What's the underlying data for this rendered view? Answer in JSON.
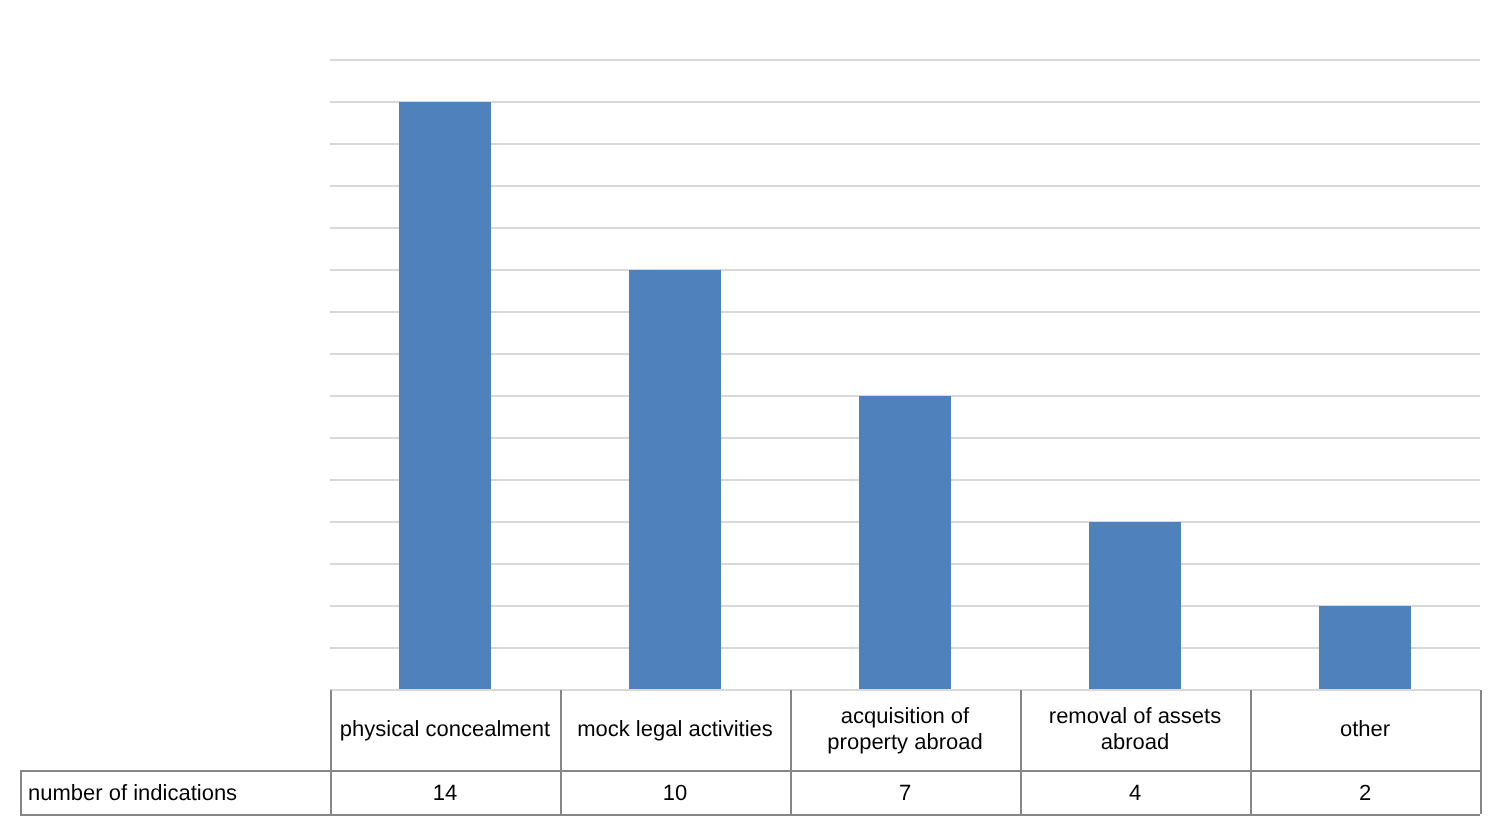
{
  "chart_data": {
    "type": "bar",
    "categories": [
      "physical concealment",
      "mock legal activities",
      "acquisition of property abroad",
      "removal of assets abroad",
      "other"
    ],
    "series": [
      {
        "name": "number of indications",
        "color": "#4f81bd",
        "values": [
          14,
          10,
          7,
          4,
          2
        ]
      }
    ],
    "ylim": [
      0,
      15
    ],
    "yticks": [
      {
        "value": 0,
        "label": null
      },
      {
        "value": 1,
        "label": null
      },
      {
        "value": 2,
        "label": null
      },
      {
        "value": 3,
        "label": null
      },
      {
        "value": 4,
        "label": null
      },
      {
        "value": 5,
        "label": null
      },
      {
        "value": 6,
        "label": null
      },
      {
        "value": 7,
        "label": null
      },
      {
        "value": 8,
        "label": null
      },
      {
        "value": 9,
        "label": null
      },
      {
        "value": 10,
        "label": null
      },
      {
        "value": 11,
        "label": null
      },
      {
        "value": 12,
        "label": null
      },
      {
        "value": 13,
        "label": null
      },
      {
        "value": 14,
        "label": null
      },
      {
        "value": 15,
        "label": null
      }
    ],
    "grid": "y",
    "tick_labels": "x",
    "data_labels": true
  }
}
